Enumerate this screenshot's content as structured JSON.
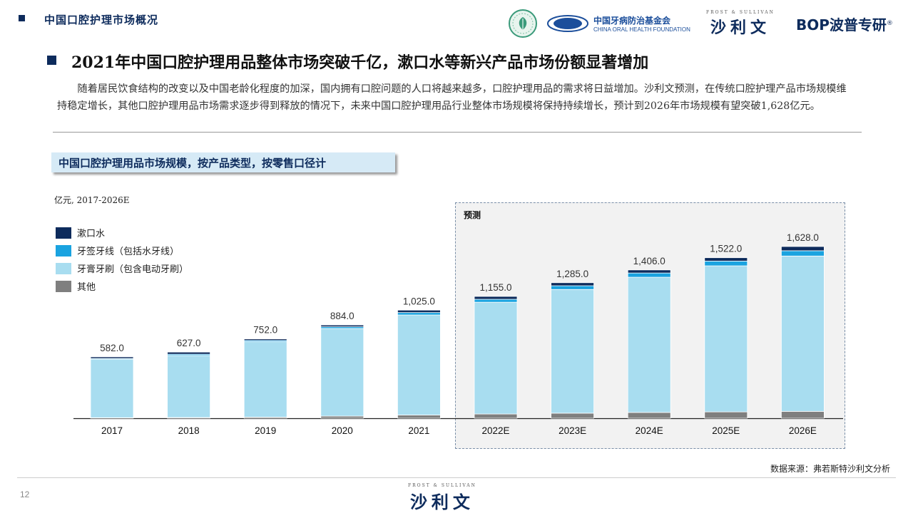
{
  "header": {
    "section_title": "中国口腔护理市场概况",
    "cohf_cn": "中国牙病防治基金会",
    "cohf_en": "CHINA ORAL HEALTH FOUNDATION",
    "cohf_badge": "COHF",
    "fs_small": "FROST & SULLIVAN",
    "fs_big": "沙利文",
    "bop_text": "BOP波普专研",
    "bop_reg": "®"
  },
  "main_title": "2021年中国口腔护理用品整体市场突破千亿，漱口水等新兴产品市场份额显著增加",
  "paragraph": "随着居民饮食结构的改变以及中国老龄化程度的加深，国内拥有口腔问题的人口将越来越多，口腔护理用品的需求将日益增加。沙利文预测，在传统口腔护理产品市场规模维持稳定增长，其他口腔护理用品市场需求逐步得到释放的情况下，未来中国口腔护理用品行业整体市场规模将保持持续增长，预计到2026年市场规模有望突破1,628亿元。",
  "chart_tag": "中国口腔护理用品市场规模，按产品类型，按零售口径计",
  "unit_label": "亿元, 2017-2026E",
  "forecast_label": "预测",
  "footer": {
    "source": "数据来源：弗若斯特沙利文分析",
    "page_number": "12",
    "fs_small": "FROST & SULLIVAN",
    "fs_big": "沙利文"
  },
  "colors": {
    "mouthwash": "#0d2b5c",
    "floss": "#1aa3e0",
    "toothpaste": "#a8ddf0",
    "other": "#7f7f7f",
    "forecast_bg": "#f2f2f2"
  },
  "chart_data": {
    "type": "bar",
    "stacked": true,
    "categories": [
      "2017",
      "2018",
      "2019",
      "2020",
      "2021",
      "2022E",
      "2023E",
      "2024E",
      "2025E",
      "2026E"
    ],
    "totals": [
      582.0,
      627.0,
      752.0,
      884.0,
      1025.0,
      1155.0,
      1285.0,
      1406.0,
      1522.0,
      1628.0
    ],
    "total_labels": [
      "582.0",
      "627.0",
      "752.0",
      "884.0",
      "1,025.0",
      "1,155.0",
      "1,285.0",
      "1,406.0",
      "1,522.0",
      "1,628.0"
    ],
    "series": [
      {
        "name": "其他",
        "color_key": "other",
        "values": [
          5,
          7,
          10,
          20,
          30,
          40,
          48,
          55,
          60,
          65
        ]
      },
      {
        "name": "牙膏牙刷（包含电动牙刷）",
        "color_key": "toothpaste",
        "values": [
          555,
          588,
          716,
          831,
          949,
          1060,
          1173,
          1282,
          1385,
          1473
        ]
      },
      {
        "name": "牙签牙线（包括水牙线）",
        "color_key": "floss",
        "values": [
          7,
          12,
          12,
          16,
          23,
          28,
          35,
          40,
          45,
          50
        ]
      },
      {
        "name": "漱口水",
        "color_key": "mouthwash",
        "values": [
          15,
          20,
          14,
          17,
          23,
          27,
          29,
          29,
          32,
          40
        ]
      }
    ],
    "legend": [
      "漱口水",
      "牙签牙线（包括水牙线）",
      "牙膏牙刷（包含电动牙刷）",
      "其他"
    ],
    "legend_color_keys": [
      "mouthwash",
      "floss",
      "toothpaste",
      "other"
    ],
    "forecast_categories": [
      "2022E",
      "2023E",
      "2024E",
      "2025E",
      "2026E"
    ],
    "ylim": [
      0,
      1628
    ],
    "grid": false,
    "legend_position": "top-left"
  }
}
